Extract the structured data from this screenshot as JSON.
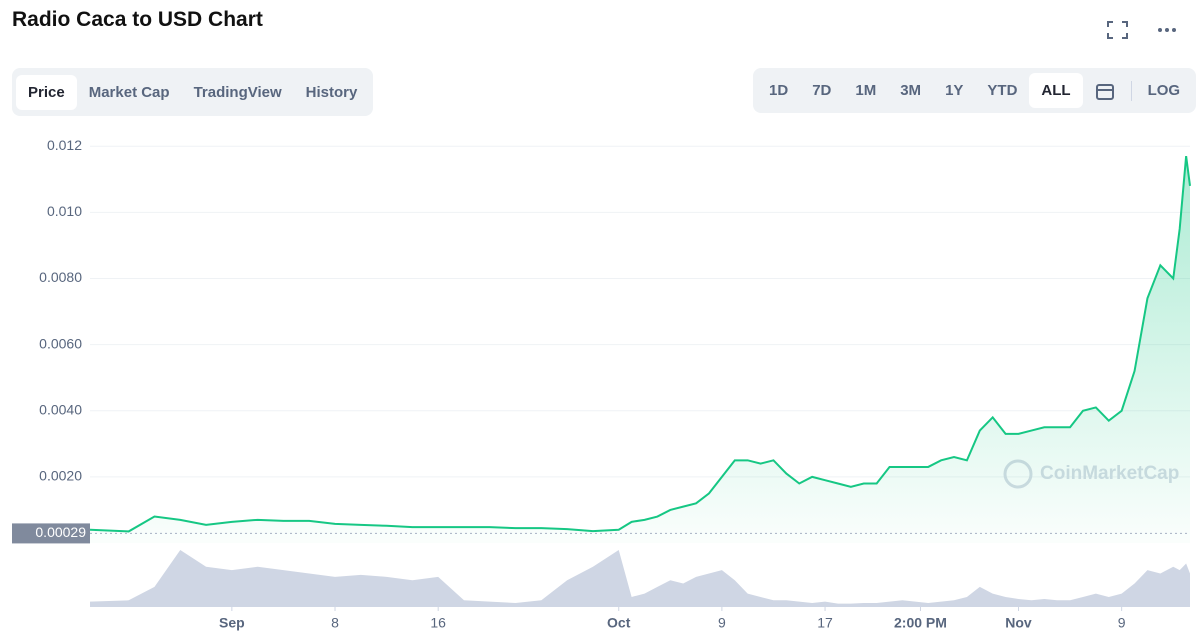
{
  "header": {
    "title": "Radio Caca to USD Chart"
  },
  "tabs": {
    "items": [
      "Price",
      "Market Cap",
      "TradingView",
      "History"
    ],
    "selected": 0
  },
  "ranges": {
    "items": [
      "1D",
      "7D",
      "1M",
      "3M",
      "1Y",
      "YTD",
      "ALL"
    ],
    "selected": 6,
    "log": "LOG"
  },
  "chart_data": {
    "type": "line",
    "color": "#16c784",
    "watermark": "CoinMarketCap",
    "x": [
      -11,
      -8,
      -6,
      -4,
      -2,
      0,
      2,
      4,
      6,
      8,
      10,
      12,
      14,
      16,
      18,
      20,
      22,
      24,
      26,
      28,
      30,
      31,
      32,
      33,
      34,
      35,
      36,
      37,
      38,
      39,
      40,
      41,
      42,
      43,
      44,
      45,
      46,
      47,
      48,
      49,
      50,
      51,
      52,
      53,
      54,
      55,
      56,
      57,
      58,
      59,
      60,
      61,
      62,
      63,
      64,
      65,
      66,
      67,
      68,
      69,
      70,
      71,
      72,
      73,
      73.5,
      74,
      74.3
    ],
    "series": [
      {
        "values": [
          0.0004,
          0.00035,
          0.0008,
          0.0007,
          0.00055,
          0.00064,
          0.0007,
          0.00067,
          0.00067,
          0.00058,
          0.00055,
          0.00052,
          0.00048,
          0.00048,
          0.00048,
          0.00048,
          0.00045,
          0.00045,
          0.00042,
          0.00036,
          0.0004,
          0.00064,
          0.0007,
          0.0008,
          0.001,
          0.0011,
          0.0012,
          0.0015,
          0.002,
          0.0025,
          0.0025,
          0.0024,
          0.0025,
          0.0021,
          0.0018,
          0.002,
          0.0019,
          0.0018,
          0.0017,
          0.0018,
          0.0018,
          0.0023,
          0.0023,
          0.0023,
          0.0023,
          0.0025,
          0.0026,
          0.0025,
          0.0034,
          0.0038,
          0.0033,
          0.0033,
          0.0034,
          0.0035,
          0.0035,
          0.0035,
          0.004,
          0.0041,
          0.0037,
          0.004,
          0.0052,
          0.0074,
          0.0084,
          0.008,
          0.0095,
          0.0117,
          0.0108
        ]
      }
    ],
    "volume": {
      "color": "#cfd6e4",
      "values": [
        8,
        10,
        30,
        85,
        60,
        55,
        60,
        55,
        50,
        45,
        48,
        45,
        40,
        45,
        10,
        8,
        6,
        10,
        40,
        60,
        85,
        15,
        20,
        30,
        40,
        35,
        45,
        50,
        55,
        40,
        20,
        15,
        10,
        10,
        8,
        6,
        8,
        5,
        5,
        6,
        6,
        8,
        10,
        8,
        6,
        8,
        10,
        15,
        30,
        20,
        15,
        12,
        10,
        12,
        10,
        10,
        15,
        20,
        15,
        20,
        35,
        55,
        50,
        60,
        55,
        65,
        50
      ],
      "ylim": [
        0,
        100
      ]
    },
    "current_price": 0.00029,
    "xlim": [
      -11,
      74.3
    ],
    "xticks": [
      {
        "value": 0,
        "label": "Sep"
      },
      8,
      16,
      {
        "value": 30,
        "label": "Oct"
      },
      {
        "value": 38,
        "label": "9"
      },
      {
        "value": 46,
        "label": "17"
      },
      {
        "value": 53.4,
        "label": "2:00 PM"
      },
      {
        "value": 61,
        "label": "Nov"
      },
      {
        "value": 69,
        "label": "9"
      }
    ],
    "ylim": [
      0,
      0.0124
    ],
    "yticks": [
      {
        "value": 0.002,
        "label": "0.0020"
      },
      {
        "value": 0.004,
        "label": "0.0040"
      },
      {
        "value": 0.006,
        "label": "0.0060"
      },
      {
        "value": 0.008,
        "label": "0.0080"
      },
      {
        "value": 0.01,
        "label": "0.010"
      },
      0.012
    ],
    "grid": true
  }
}
